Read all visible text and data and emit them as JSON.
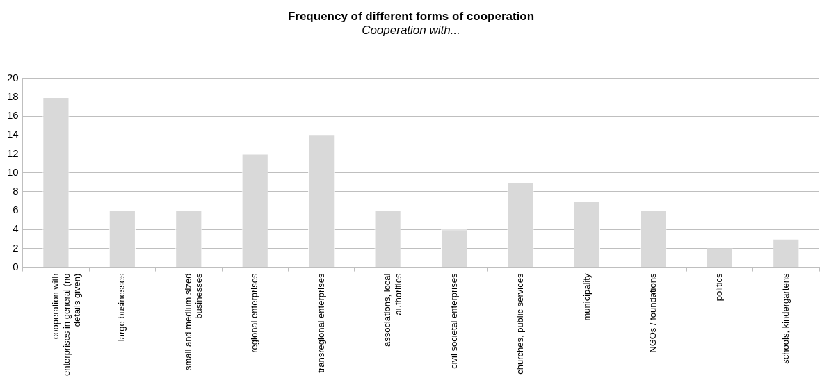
{
  "chart_data": {
    "type": "bar",
    "title": "Frequency of different forms of cooperation",
    "subtitle": "Cooperation with...",
    "categories": [
      "cooperation with enterprises in general (no details given)",
      "large businesses",
      "small and medium sized businesses",
      "regional enterprises",
      "transregional enterprises",
      "associations, local authorities",
      "civil societal enterprises",
      "churches, public services",
      "municipality",
      "NGOs / foundations",
      "politics",
      "schools, kindergartens"
    ],
    "values": [
      18,
      6,
      6,
      12,
      14,
      6,
      4,
      9,
      7,
      6,
      2,
      3
    ],
    "color": "#d9d9d9",
    "ylim": [
      0,
      20
    ],
    "yticks": [
      0,
      2,
      4,
      6,
      8,
      10,
      12,
      14,
      16,
      18,
      20
    ],
    "grid": "y"
  }
}
